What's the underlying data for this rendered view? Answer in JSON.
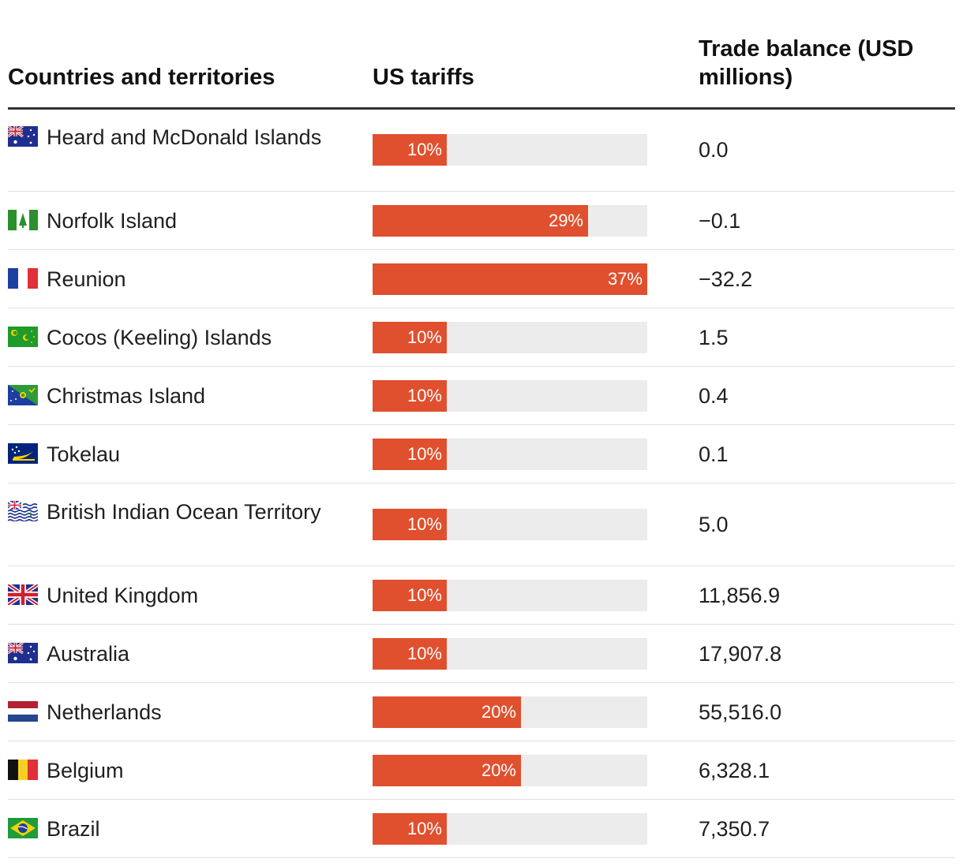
{
  "chart_data": {
    "type": "table",
    "columns": [
      "Countries and territories",
      "US tariffs",
      "Trade balance (USD millions)"
    ],
    "tariff_max": 37,
    "colors": {
      "bar": "#e0502e",
      "track": "#ececec"
    },
    "rows": [
      {
        "country": "Heard and McDonald Islands",
        "flag": "australia-flag-icon",
        "tariff": 10,
        "tariff_label": "10%",
        "trade": "0.0"
      },
      {
        "country": "Norfolk Island",
        "flag": "norfolk-island-flag-icon",
        "tariff": 29,
        "tariff_label": "29%",
        "trade": "−0.1"
      },
      {
        "country": "Reunion",
        "flag": "france-flag-icon",
        "tariff": 37,
        "tariff_label": "37%",
        "trade": "−32.2"
      },
      {
        "country": "Cocos (Keeling) Islands",
        "flag": "cocos-islands-flag-icon",
        "tariff": 10,
        "tariff_label": "10%",
        "trade": "1.5"
      },
      {
        "country": "Christmas Island",
        "flag": "christmas-island-flag-icon",
        "tariff": 10,
        "tariff_label": "10%",
        "trade": "0.4"
      },
      {
        "country": "Tokelau",
        "flag": "tokelau-flag-icon",
        "tariff": 10,
        "tariff_label": "10%",
        "trade": "0.1"
      },
      {
        "country": "British Indian Ocean Territory",
        "flag": "biot-flag-icon",
        "tariff": 10,
        "tariff_label": "10%",
        "trade": "5.0"
      },
      {
        "country": "United Kingdom",
        "flag": "uk-flag-icon",
        "tariff": 10,
        "tariff_label": "10%",
        "trade": "11,856.9"
      },
      {
        "country": "Australia",
        "flag": "australia-flag-icon",
        "tariff": 10,
        "tariff_label": "10%",
        "trade": "17,907.8"
      },
      {
        "country": "Netherlands",
        "flag": "netherlands-flag-icon",
        "tariff": 20,
        "tariff_label": "20%",
        "trade": "55,516.0"
      },
      {
        "country": "Belgium",
        "flag": "belgium-flag-icon",
        "tariff": 20,
        "tariff_label": "20%",
        "trade": "6,328.1"
      },
      {
        "country": "Brazil",
        "flag": "brazil-flag-icon",
        "tariff": 10,
        "tariff_label": "10%",
        "trade": "7,350.7"
      }
    ]
  }
}
